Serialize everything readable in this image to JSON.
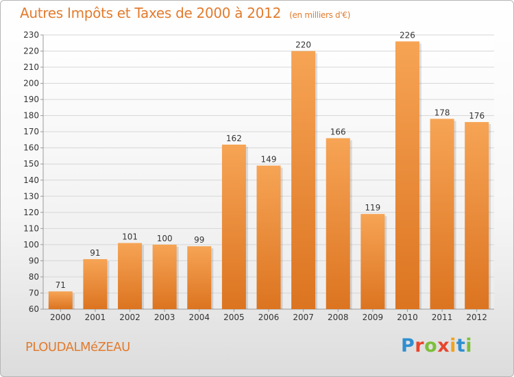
{
  "header": {
    "title": "Autres Impôts et Taxes de 2000 à 2012",
    "unit": "(en milliers d'€)"
  },
  "footer": {
    "commune": "PLOUDALMéZEAU",
    "logo_text": "Proxiti",
    "logo_colors": [
      "#2e8fd0",
      "#e8452c",
      "#7cbf3a",
      "#e8452c",
      "#f2a31b",
      "#2e8fd0",
      "#7cbf3a"
    ]
  },
  "colors": {
    "bar_top": "#f6a455",
    "bar_bottom": "#dc7420",
    "accent": "#e27b2d",
    "grid": "#d6d6d6",
    "axis_text": "#333333"
  },
  "chart_data": {
    "type": "bar",
    "title": "Autres Impôts et Taxes de 2000 à 2012",
    "subtitle": "(en milliers d'€)",
    "categories": [
      "2000",
      "2001",
      "2002",
      "2003",
      "2004",
      "2005",
      "2006",
      "2007",
      "2008",
      "2009",
      "2010",
      "2011",
      "2012"
    ],
    "values": [
      71,
      91,
      101,
      100,
      99,
      162,
      149,
      220,
      166,
      119,
      226,
      178,
      176
    ],
    "ylim": [
      60,
      230
    ],
    "ytick_step": 10,
    "grid": true,
    "data_labels": true
  }
}
